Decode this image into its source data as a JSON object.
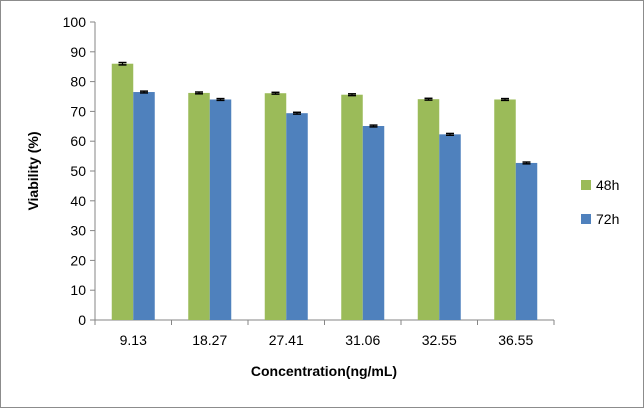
{
  "chart_data": {
    "type": "bar",
    "title": "",
    "xlabel": "Concentration(ng/mL)",
    "ylabel": "Viability (%)",
    "ylim": [
      0,
      100
    ],
    "yticks": [
      "0",
      "10",
      "20",
      "30",
      "40",
      "50",
      "60",
      "70",
      "80",
      "90",
      "100"
    ],
    "categories": [
      "9.13",
      "18.27",
      "27.41",
      "31.06",
      "32.55",
      "36.55"
    ],
    "series": [
      {
        "name": "48h",
        "color": "#9bbb59",
        "values": [
          86.0,
          76.2,
          76.1,
          75.6,
          74.1,
          74.0
        ],
        "errors": [
          0.4,
          0.3,
          0.3,
          0.3,
          0.3,
          0.3
        ]
      },
      {
        "name": "72h",
        "color": "#4f81bd",
        "values": [
          76.5,
          74.0,
          69.4,
          65.1,
          62.3,
          52.7
        ],
        "errors": [
          0.3,
          0.3,
          0.3,
          0.3,
          0.3,
          0.3
        ]
      }
    ],
    "grid": false,
    "legend": "right"
  }
}
